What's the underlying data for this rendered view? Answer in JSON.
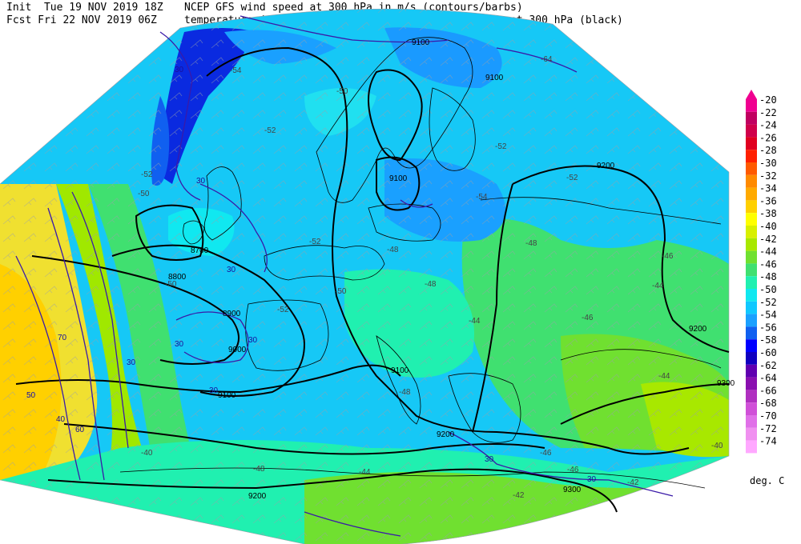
{
  "header": {
    "init_line": "Init  Tue 19 NOV 2019 18Z",
    "fcst_line": "Fcst Fri 22 NOV 2019 06Z",
    "title_line1": "NCEP GFS wind speed at 300 hPa in m/s (contours/barbs)",
    "title_line2": "temperature (shaded/dotted) and geopotential height at 300 hPa (black)"
  },
  "legend": {
    "unit": "deg. C",
    "levels": [
      {
        "label": "-20",
        "color": "#f00090"
      },
      {
        "label": "-22",
        "color": "#c00060"
      },
      {
        "label": "-24",
        "color": "#d0004a"
      },
      {
        "label": "-26",
        "color": "#e00020"
      },
      {
        "label": "-28",
        "color": "#ff2000"
      },
      {
        "label": "-30",
        "color": "#ff5a00"
      },
      {
        "label": "-32",
        "color": "#ff8a00"
      },
      {
        "label": "-34",
        "color": "#ffaa00"
      },
      {
        "label": "-36",
        "color": "#ffd000"
      },
      {
        "label": "-38",
        "color": "#ffff00"
      },
      {
        "label": "-40",
        "color": "#d8f000"
      },
      {
        "label": "-42",
        "color": "#a8e800"
      },
      {
        "label": "-44",
        "color": "#70e030"
      },
      {
        "label": "-46",
        "color": "#40e070"
      },
      {
        "label": "-48",
        "color": "#20f0b0"
      },
      {
        "label": "-50",
        "color": "#10e8f0"
      },
      {
        "label": "-52",
        "color": "#10c8ff"
      },
      {
        "label": "-54",
        "color": "#1aa0ff"
      },
      {
        "label": "-56",
        "color": "#1060f0"
      },
      {
        "label": "-58",
        "color": "#0000ff"
      },
      {
        "label": "-60",
        "color": "#1000c0"
      },
      {
        "label": "-62",
        "color": "#6000b0"
      },
      {
        "label": "-64",
        "color": "#8a10b0"
      },
      {
        "label": "-66",
        "color": "#b030c0"
      },
      {
        "label": "-68",
        "color": "#d050d8"
      },
      {
        "label": "-70",
        "color": "#e070e8"
      },
      {
        "label": "-72",
        "color": "#f090f0"
      },
      {
        "label": "-74",
        "color": "#ffa8ff"
      }
    ]
  },
  "map": {
    "height_labels": [
      "9200",
      "9100",
      "9100",
      "8700",
      "8800",
      "8900",
      "9000",
      "9100",
      "9200",
      "9100",
      "9200",
      "9300",
      "9200",
      "9100",
      "9300"
    ],
    "temperature_labels": [
      "-64",
      "-54",
      "-50",
      "-52",
      "-52",
      "-52",
      "-52",
      "-50",
      "-54",
      "-52",
      "-50",
      "-52",
      "-48",
      "-50",
      "-48",
      "-48",
      "-46",
      "-44",
      "-44",
      "-46",
      "-48",
      "-44",
      "-48",
      "-46",
      "-44",
      "-40",
      "-42",
      "-46",
      "-42",
      "-40"
    ],
    "wind_labels": [
      "30",
      "30",
      "30",
      "30",
      "30",
      "30",
      "30",
      "30",
      "40",
      "50",
      "60",
      "70",
      "30"
    ],
    "colors": {
      "sea_ice_dark": "#1060f0",
      "land_border": "#000000",
      "height_contour": "#000000",
      "wind_contour": "#3a1aa8"
    }
  }
}
